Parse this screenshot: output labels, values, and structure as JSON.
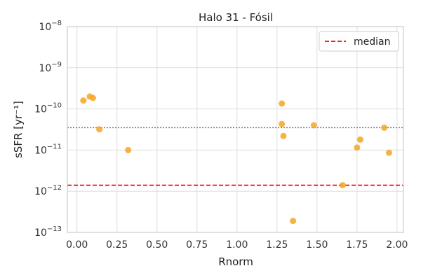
{
  "chart_data": {
    "type": "scatter",
    "title": "Halo 31 - Fósil",
    "xlabel": "Rnorm",
    "ylabel": "sSFR [yr⁻¹]",
    "xlim": [
      -0.06,
      2.04
    ],
    "ylim": [
      1e-13,
      1e-08
    ],
    "yscale": "log",
    "grid": true,
    "x_ticks": [
      0.0,
      0.25,
      0.5,
      0.75,
      1.0,
      1.25,
      1.5,
      1.75,
      2.0
    ],
    "x_tick_labels": [
      "0.00",
      "0.25",
      "0.50",
      "0.75",
      "1.00",
      "1.25",
      "1.50",
      "1.75",
      "2.00"
    ],
    "y_ticks": [
      {
        "value": 1e-13,
        "base": "10",
        "exp": "−13"
      },
      {
        "value": 1e-12,
        "base": "10",
        "exp": "−12"
      },
      {
        "value": 1e-11,
        "base": "10",
        "exp": "−11"
      },
      {
        "value": 1e-10,
        "base": "10",
        "exp": "−10"
      },
      {
        "value": 1e-09,
        "base": "10",
        "exp": "−9"
      },
      {
        "value": 1e-08,
        "base": "10",
        "exp": "−8"
      }
    ],
    "point_color": "#f5a623",
    "points": [
      {
        "x": 0.04,
        "y": 1.6e-10
      },
      {
        "x": 0.08,
        "y": 2e-10
      },
      {
        "x": 0.1,
        "y": 1.85e-10
      },
      {
        "x": 0.14,
        "y": 3.2e-11
      },
      {
        "x": 0.32,
        "y": 1e-11
      },
      {
        "x": 1.28,
        "y": 1.35e-10
      },
      {
        "x": 1.28,
        "y": 4.3e-11
      },
      {
        "x": 1.29,
        "y": 2.2e-11
      },
      {
        "x": 1.35,
        "y": 1.9e-13
      },
      {
        "x": 1.48,
        "y": 4e-11
      },
      {
        "x": 1.66,
        "y": 1.4e-12
      },
      {
        "x": 1.75,
        "y": 1.15e-11
      },
      {
        "x": 1.77,
        "y": 1.8e-11
      },
      {
        "x": 1.92,
        "y": 3.5e-11
      },
      {
        "x": 1.95,
        "y": 8.6e-12
      }
    ],
    "lines": [
      {
        "label": "median",
        "y": 1.4e-12,
        "color": "#ff0000",
        "style": "dashed"
      },
      {
        "label": "",
        "y": 3.5e-11,
        "color": "#777777",
        "style": "dotted"
      }
    ],
    "legend": {
      "position": "top-right",
      "entries": [
        "median"
      ]
    }
  }
}
